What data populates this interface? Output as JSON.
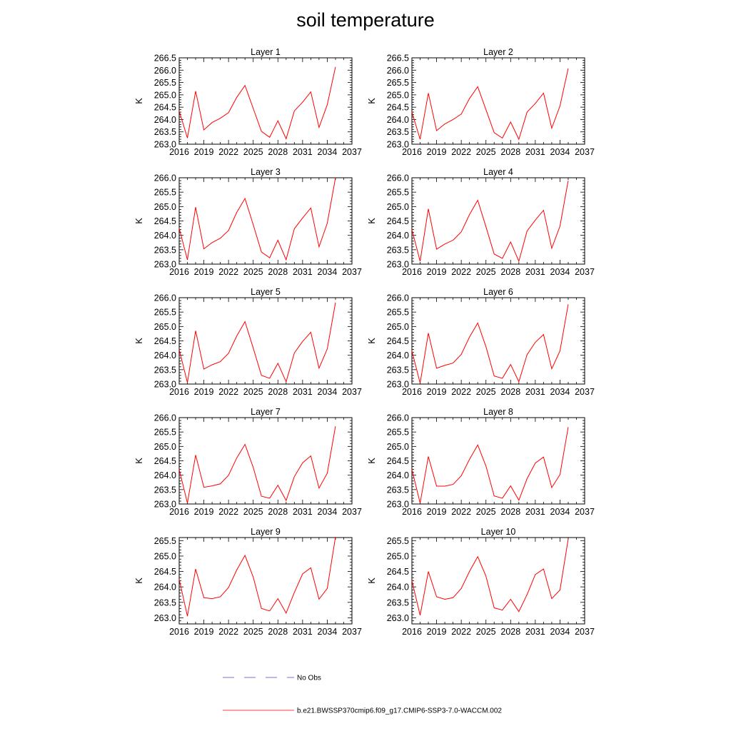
{
  "title": "soil temperature",
  "chart_data": [
    {
      "type": "line",
      "title": "Layer 1",
      "ylabel": "K",
      "xlim": [
        2016,
        2037
      ],
      "ylim": [
        263.0,
        266.5
      ],
      "xticks": [
        "2016",
        "2019",
        "2022",
        "2025",
        "2028",
        "2031",
        "2034",
        "2037"
      ],
      "yticks": [
        "263.0",
        "263.5",
        "264.0",
        "264.5",
        "265.0",
        "265.5",
        "266.0",
        "266.5"
      ],
      "x": [
        2016,
        2017,
        2018,
        2019,
        2020,
        2021,
        2022,
        2023,
        2024,
        2025,
        2026,
        2027,
        2028,
        2029,
        2030,
        2031,
        2032,
        2033,
        2034,
        2035
      ],
      "series": [
        {
          "name": "b.e21.BWSSP370cmip6.f09_g17.CMIP6-SSP3-7.0-WACCM.002",
          "color": "#ff0000",
          "values": [
            264.35,
            263.25,
            265.15,
            263.58,
            263.88,
            264.05,
            264.28,
            264.9,
            265.38,
            264.45,
            263.52,
            263.28,
            263.95,
            263.22,
            264.35,
            264.7,
            265.12,
            263.68,
            264.6,
            266.13
          ]
        }
      ]
    },
    {
      "type": "line",
      "title": "Layer 2",
      "ylabel": "K",
      "xlim": [
        2016,
        2037
      ],
      "ylim": [
        263.0,
        266.5
      ],
      "xticks": [
        "2016",
        "2019",
        "2022",
        "2025",
        "2028",
        "2031",
        "2034",
        "2037"
      ],
      "yticks": [
        "263.0",
        "263.5",
        "264.0",
        "264.5",
        "265.0",
        "265.5",
        "266.0",
        "266.5"
      ],
      "x": [
        2016,
        2017,
        2018,
        2019,
        2020,
        2021,
        2022,
        2023,
        2024,
        2025,
        2026,
        2027,
        2028,
        2029,
        2030,
        2031,
        2032,
        2033,
        2034,
        2035
      ],
      "series": [
        {
          "name": "b.e21.BWSSP370cmip6.f09_g17.CMIP6-SSP3-7.0-WACCM.002",
          "color": "#ff0000",
          "values": [
            264.3,
            263.2,
            265.07,
            263.55,
            263.82,
            264.0,
            264.22,
            264.85,
            265.33,
            264.4,
            263.47,
            263.25,
            263.9,
            263.2,
            264.3,
            264.65,
            265.07,
            263.65,
            264.55,
            266.07
          ]
        }
      ]
    },
    {
      "type": "line",
      "title": "Layer 3",
      "ylabel": "K",
      "xlim": [
        2016,
        2037
      ],
      "ylim": [
        263.0,
        266.0
      ],
      "xticks": [
        "2016",
        "2019",
        "2022",
        "2025",
        "2028",
        "2031",
        "2034",
        "2037"
      ],
      "yticks": [
        "263.0",
        "263.5",
        "264.0",
        "264.5",
        "265.0",
        "265.5",
        "266.0"
      ],
      "x": [
        2016,
        2017,
        2018,
        2019,
        2020,
        2021,
        2022,
        2023,
        2024,
        2025,
        2026,
        2027,
        2028,
        2029,
        2030,
        2031,
        2032,
        2033,
        2034,
        2035
      ],
      "series": [
        {
          "name": "b.e21.BWSSP370cmip6.f09_g17.CMIP6-SSP3-7.0-WACCM.002",
          "color": "#ff0000",
          "values": [
            264.25,
            263.15,
            264.98,
            263.53,
            263.75,
            263.9,
            264.17,
            264.8,
            265.28,
            264.37,
            263.42,
            263.22,
            263.83,
            263.15,
            264.23,
            264.6,
            264.95,
            263.6,
            264.42,
            266.0
          ]
        }
      ]
    },
    {
      "type": "line",
      "title": "Layer 4",
      "ylabel": "K",
      "xlim": [
        2016,
        2037
      ],
      "ylim": [
        263.0,
        266.0
      ],
      "xticks": [
        "2016",
        "2019",
        "2022",
        "2025",
        "2028",
        "2031",
        "2034",
        "2037"
      ],
      "yticks": [
        "263.0",
        "263.5",
        "264.0",
        "264.5",
        "265.0",
        "265.5",
        "266.0"
      ],
      "x": [
        2016,
        2017,
        2018,
        2019,
        2020,
        2021,
        2022,
        2023,
        2024,
        2025,
        2026,
        2027,
        2028,
        2029,
        2030,
        2031,
        2032,
        2033,
        2034,
        2035
      ],
      "series": [
        {
          "name": "b.e21.BWSSP370cmip6.f09_g17.CMIP6-SSP3-7.0-WACCM.002",
          "color": "#ff0000",
          "values": [
            264.2,
            263.1,
            264.92,
            263.52,
            263.7,
            263.83,
            264.12,
            264.72,
            265.22,
            264.3,
            263.35,
            263.2,
            263.77,
            263.1,
            264.15,
            264.53,
            264.87,
            263.55,
            264.32,
            265.9
          ]
        }
      ]
    },
    {
      "type": "line",
      "title": "Layer 5",
      "ylabel": "K",
      "xlim": [
        2016,
        2037
      ],
      "ylim": [
        263.0,
        266.0
      ],
      "xticks": [
        "2016",
        "2019",
        "2022",
        "2025",
        "2028",
        "2031",
        "2034",
        "2037"
      ],
      "yticks": [
        "263.0",
        "263.5",
        "264.0",
        "264.5",
        "265.0",
        "265.5",
        "266.0"
      ],
      "x": [
        2016,
        2017,
        2018,
        2019,
        2020,
        2021,
        2022,
        2023,
        2024,
        2025,
        2026,
        2027,
        2028,
        2029,
        2030,
        2031,
        2032,
        2033,
        2034,
        2035
      ],
      "series": [
        {
          "name": "b.e21.BWSSP370cmip6.f09_g17.CMIP6-SSP3-7.0-WACCM.002",
          "color": "#ff0000",
          "values": [
            264.2,
            263.05,
            264.85,
            263.52,
            263.67,
            263.78,
            264.07,
            264.67,
            265.17,
            264.25,
            263.3,
            263.2,
            263.72,
            263.08,
            264.08,
            264.48,
            264.8,
            263.55,
            264.22,
            265.83
          ]
        }
      ]
    },
    {
      "type": "line",
      "title": "Layer 6",
      "ylabel": "K",
      "xlim": [
        2016,
        2037
      ],
      "ylim": [
        263.0,
        266.0
      ],
      "xticks": [
        "2016",
        "2019",
        "2022",
        "2025",
        "2028",
        "2031",
        "2034",
        "2037"
      ],
      "yticks": [
        "263.0",
        "263.5",
        "264.0",
        "264.5",
        "265.0",
        "265.5",
        "266.0"
      ],
      "x": [
        2016,
        2017,
        2018,
        2019,
        2020,
        2021,
        2022,
        2023,
        2024,
        2025,
        2026,
        2027,
        2028,
        2029,
        2030,
        2031,
        2032,
        2033,
        2034,
        2035
      ],
      "series": [
        {
          "name": "b.e21.BWSSP370cmip6.f09_g17.CMIP6-SSP3-7.0-WACCM.002",
          "color": "#ff0000",
          "values": [
            264.15,
            263.03,
            264.77,
            263.55,
            263.65,
            263.73,
            264.03,
            264.63,
            265.12,
            264.3,
            263.28,
            263.2,
            263.68,
            263.08,
            264.02,
            264.45,
            264.72,
            263.53,
            264.15,
            265.77
          ]
        }
      ]
    },
    {
      "type": "line",
      "title": "Layer 7",
      "ylabel": "K",
      "xlim": [
        2016,
        2037
      ],
      "ylim": [
        263.0,
        266.0
      ],
      "xticks": [
        "2016",
        "2019",
        "2022",
        "2025",
        "2028",
        "2031",
        "2034",
        "2037"
      ],
      "yticks": [
        "263.0",
        "263.5",
        "264.0",
        "264.5",
        "265.0",
        "265.5",
        "266.0"
      ],
      "x": [
        2016,
        2017,
        2018,
        2019,
        2020,
        2021,
        2022,
        2023,
        2024,
        2025,
        2026,
        2027,
        2028,
        2029,
        2030,
        2031,
        2032,
        2033,
        2034,
        2035
      ],
      "series": [
        {
          "name": "b.e21.BWSSP370cmip6.f09_g17.CMIP6-SSP3-7.0-WACCM.002",
          "color": "#ff0000",
          "values": [
            264.2,
            263.03,
            264.7,
            263.58,
            263.63,
            263.7,
            264.0,
            264.6,
            265.07,
            264.27,
            263.27,
            263.2,
            263.65,
            263.12,
            263.95,
            264.43,
            264.67,
            263.55,
            264.07,
            265.7
          ]
        }
      ]
    },
    {
      "type": "line",
      "title": "Layer 8",
      "ylabel": "K",
      "xlim": [
        2016,
        2037
      ],
      "ylim": [
        263.0,
        266.0
      ],
      "xticks": [
        "2016",
        "2019",
        "2022",
        "2025",
        "2028",
        "2031",
        "2034",
        "2037"
      ],
      "yticks": [
        "263.0",
        "263.5",
        "264.0",
        "264.5",
        "265.0",
        "265.5",
        "266.0"
      ],
      "x": [
        2016,
        2017,
        2018,
        2019,
        2020,
        2021,
        2022,
        2023,
        2024,
        2025,
        2026,
        2027,
        2028,
        2029,
        2030,
        2031,
        2032,
        2033,
        2034,
        2035
      ],
      "series": [
        {
          "name": "b.e21.BWSSP370cmip6.f09_g17.CMIP6-SSP3-7.0-WACCM.002",
          "color": "#ff0000",
          "values": [
            264.2,
            263.03,
            264.65,
            263.62,
            263.62,
            263.68,
            263.98,
            264.55,
            265.05,
            264.32,
            263.28,
            263.2,
            263.63,
            263.13,
            263.88,
            264.42,
            264.63,
            263.57,
            264.02,
            265.67
          ]
        }
      ]
    },
    {
      "type": "line",
      "title": "Layer 9",
      "ylabel": "K",
      "xlim": [
        2016,
        2037
      ],
      "ylim": [
        262.8,
        265.6
      ],
      "xticks": [
        "2016",
        "2019",
        "2022",
        "2025",
        "2028",
        "2031",
        "2034",
        "2037"
      ],
      "yticks": [
        "263.0",
        "263.5",
        "264.0",
        "264.5",
        "265.0",
        "265.5"
      ],
      "x": [
        2016,
        2017,
        2018,
        2019,
        2020,
        2021,
        2022,
        2023,
        2024,
        2025,
        2026,
        2027,
        2028,
        2029,
        2030,
        2031,
        2032,
        2033,
        2034,
        2035
      ],
      "series": [
        {
          "name": "b.e21.BWSSP370cmip6.f09_g17.CMIP6-SSP3-7.0-WACCM.002",
          "color": "#ff0000",
          "values": [
            264.25,
            263.05,
            264.58,
            263.65,
            263.62,
            263.68,
            263.98,
            264.55,
            265.02,
            264.32,
            263.3,
            263.22,
            263.62,
            263.15,
            263.82,
            264.42,
            264.62,
            263.6,
            263.95,
            265.62
          ]
        }
      ]
    },
    {
      "type": "line",
      "title": "Layer 10",
      "ylabel": "K",
      "xlim": [
        2016,
        2037
      ],
      "ylim": [
        262.8,
        265.6
      ],
      "xticks": [
        "2016",
        "2019",
        "2022",
        "2025",
        "2028",
        "2031",
        "2034",
        "2037"
      ],
      "yticks": [
        "263.0",
        "263.5",
        "264.0",
        "264.5",
        "265.0",
        "265.5"
      ],
      "x": [
        2016,
        2017,
        2018,
        2019,
        2020,
        2021,
        2022,
        2023,
        2024,
        2025,
        2026,
        2027,
        2028,
        2029,
        2030,
        2031,
        2032,
        2033,
        2034,
        2035
      ],
      "series": [
        {
          "name": "b.e21.BWSSP370cmip6.f09_g17.CMIP6-SSP3-7.0-WACCM.002",
          "color": "#ff0000",
          "values": [
            264.2,
            263.08,
            264.5,
            263.68,
            263.6,
            263.65,
            263.95,
            264.5,
            264.98,
            264.35,
            263.32,
            263.25,
            263.6,
            263.2,
            263.75,
            264.4,
            264.58,
            263.62,
            263.9,
            265.55
          ]
        }
      ]
    }
  ],
  "legend": {
    "items": [
      {
        "label": "No Obs",
        "color": "#4a4ac8",
        "style": "dashed"
      },
      {
        "label": "b.e21.BWSSP370cmip6.f09_g17.CMIP6-SSP3-7.0-WACCM.002",
        "color": "#ff0000",
        "style": "solid"
      }
    ]
  }
}
